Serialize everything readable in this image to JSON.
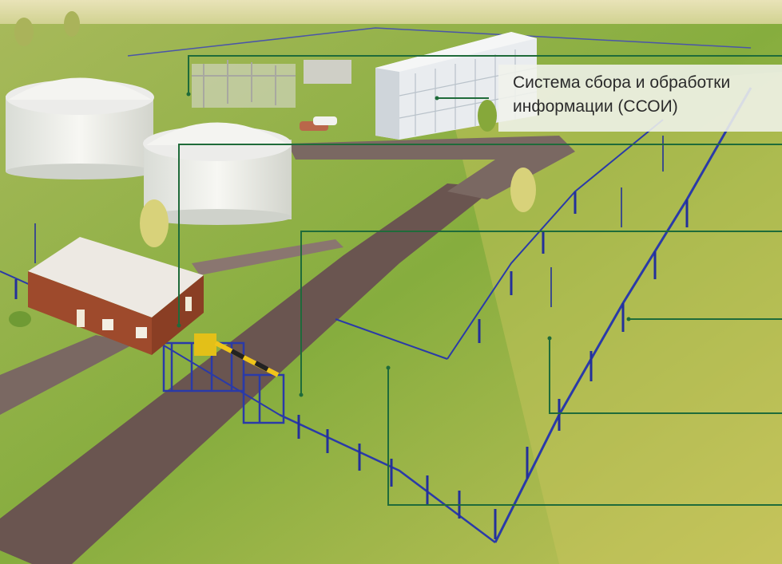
{
  "image": {
    "description_free": true,
    "callout": {
      "line1": "Система сбора и обработки",
      "line2": "информации (ССОИ)"
    },
    "colors": {
      "leader_line": "#1f6b3a",
      "fence": "#2a3aa8",
      "grass": "#8fb347",
      "road": "#5e4a45",
      "building_brick": "#9b4a2e",
      "barrier": "#e8c21a"
    }
  }
}
